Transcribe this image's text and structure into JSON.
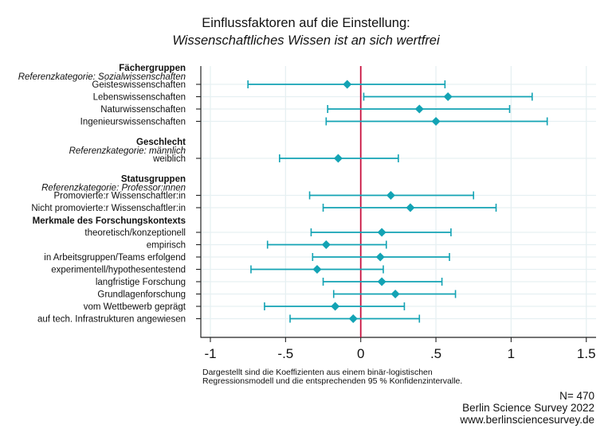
{
  "title": "Einflussfaktoren auf die Einstellung:",
  "subtitle": "Wissenschaftliches Wissen ist an sich wertfrei",
  "note_lines": [
    "Dargestellt sind die Koeffizienten aus einem binär-logistischen",
    "Regressionsmodell und die entsprechenden 95 % Konfidenzintervalle."
  ],
  "footer": {
    "n": "N= 470",
    "source": "Berlin Science Survey 2022",
    "url": "www.berlinsciencesurvey.de"
  },
  "colors": {
    "marker": "#13a3b4",
    "reference_line": "#c8103e",
    "grid": "#e6f0f2",
    "axis": "#222222"
  },
  "chart_data": {
    "type": "scatter",
    "subtype": "coefficient-plot",
    "title": "Einflussfaktoren auf die Einstellung: Wissenschaftliches Wissen ist an sich wertfrei",
    "xlabel": "",
    "ylabel": "",
    "xlim": [
      -1.05,
      1.55
    ],
    "xticks": [
      -1,
      -0.5,
      0,
      0.5,
      1,
      1.5
    ],
    "xtick_labels": [
      "-1",
      "-.5",
      "0",
      ".5",
      "1",
      "1.5"
    ],
    "reference_line": 0,
    "grid": true,
    "legend": "none",
    "groups": [
      {
        "heading": "Fächergruppen",
        "reference": "Referenzkategorie: Sozialwissenschaften",
        "items": [
          {
            "label": "Geisteswissenschaften",
            "coef": -0.09,
            "lo": -0.75,
            "hi": 0.56
          },
          {
            "label": "Lebenswissenschaften",
            "coef": 0.58,
            "lo": 0.02,
            "hi": 1.14
          },
          {
            "label": "Naturwissenschaften",
            "coef": 0.39,
            "lo": -0.22,
            "hi": 0.99
          },
          {
            "label": "Ingenieurswissenschaften",
            "coef": 0.5,
            "lo": -0.23,
            "hi": 1.24
          }
        ]
      },
      {
        "heading": "Geschlecht",
        "reference": "Referenzkategorie: männlich",
        "items": [
          {
            "label": "weiblich",
            "coef": -0.15,
            "lo": -0.54,
            "hi": 0.25
          }
        ]
      },
      {
        "heading": "Statusgruppen",
        "reference": "Referenzkategorie: Professor:innen",
        "items": [
          {
            "label": "Promovierte:r Wissenschaftler:in",
            "coef": 0.2,
            "lo": -0.34,
            "hi": 0.75
          },
          {
            "label": "Nicht promovierte:r Wissenschaftler:in",
            "coef": 0.33,
            "lo": -0.25,
            "hi": 0.9
          }
        ]
      },
      {
        "heading": "Merkmale des Forschungskontexts",
        "reference": "",
        "items": [
          {
            "label": "theoretisch/konzeptionell",
            "coef": 0.14,
            "lo": -0.33,
            "hi": 0.6
          },
          {
            "label": "empirisch",
            "coef": -0.23,
            "lo": -0.62,
            "hi": 0.17
          },
          {
            "label": "in Arbeitsgruppen/Teams erfolgend",
            "coef": 0.13,
            "lo": -0.32,
            "hi": 0.59
          },
          {
            "label": "experimentell/hypothesentestend",
            "coef": -0.29,
            "lo": -0.73,
            "hi": 0.15
          },
          {
            "label": "langfristige Forschung",
            "coef": 0.14,
            "lo": -0.25,
            "hi": 0.54
          },
          {
            "label": "Grundlagenforschung",
            "coef": 0.23,
            "lo": -0.18,
            "hi": 0.63
          },
          {
            "label": "vom Wettbewerb geprägt",
            "coef": -0.17,
            "lo": -0.64,
            "hi": 0.29
          },
          {
            "label": "auf tech. Infrastrukturen angewiesen",
            "coef": -0.05,
            "lo": -0.47,
            "hi": 0.39
          }
        ]
      }
    ]
  }
}
